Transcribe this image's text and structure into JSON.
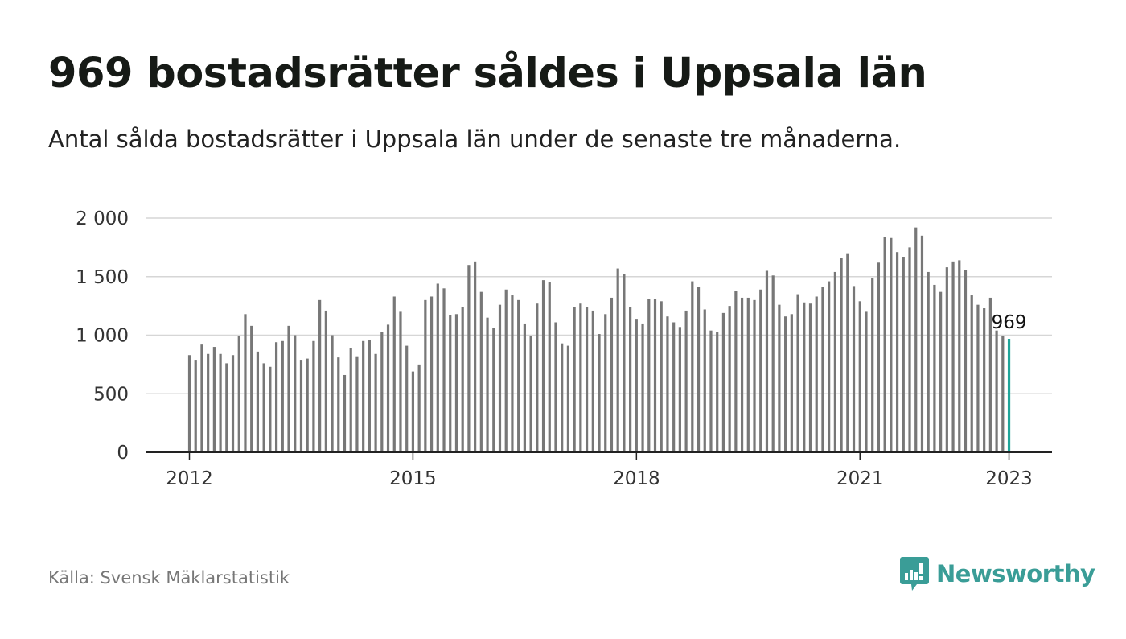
{
  "title": "969 bostadsrätter såldes i Uppsala län",
  "subtitle": "Antal sålda bostadsrätter i Uppsala län under de senaste tre månaderna.",
  "source": "Källa: Svensk Mäklarstatistik",
  "brand": {
    "name": "Newsworthy",
    "icon": "newsworthy-logo-icon",
    "color": "#3a9d97"
  },
  "chart_data": {
    "type": "bar",
    "x_start": "2012-01",
    "x_interval": "month",
    "ylim": [
      0,
      2000
    ],
    "grid": true,
    "y_ticks": [
      {
        "value": 0,
        "label": "0"
      },
      {
        "value": 500,
        "label": "500"
      },
      {
        "value": 1000,
        "label": "1 000"
      },
      {
        "value": 1500,
        "label": "1 500"
      },
      {
        "value": 2000,
        "label": "2 000"
      }
    ],
    "x_ticks": [
      {
        "index": 0,
        "label": "2012"
      },
      {
        "index": 36,
        "label": "2015"
      },
      {
        "index": 72,
        "label": "2018"
      },
      {
        "index": 108,
        "label": "2021"
      },
      {
        "index": 132,
        "label": "2023"
      }
    ],
    "bar_color": "#777777",
    "highlight_color": "#1fa59a",
    "highlight_index": 132,
    "highlight_label": "969",
    "values": [
      830,
      790,
      920,
      840,
      900,
      840,
      760,
      830,
      990,
      1180,
      1080,
      860,
      760,
      730,
      940,
      950,
      1080,
      1000,
      790,
      800,
      950,
      1300,
      1210,
      1000,
      810,
      660,
      890,
      820,
      950,
      960,
      840,
      1030,
      1090,
      1330,
      1200,
      910,
      690,
      750,
      1300,
      1330,
      1440,
      1400,
      1170,
      1180,
      1240,
      1600,
      1630,
      1370,
      1150,
      1060,
      1260,
      1390,
      1340,
      1300,
      1100,
      990,
      1270,
      1470,
      1450,
      1110,
      930,
      910,
      1240,
      1270,
      1240,
      1210,
      1010,
      1180,
      1320,
      1570,
      1520,
      1240,
      1140,
      1100,
      1310,
      1310,
      1290,
      1160,
      1110,
      1070,
      1210,
      1460,
      1410,
      1220,
      1040,
      1030,
      1190,
      1250,
      1380,
      1320,
      1320,
      1300,
      1390,
      1550,
      1510,
      1260,
      1160,
      1180,
      1350,
      1280,
      1270,
      1330,
      1410,
      1460,
      1540,
      1660,
      1700,
      1420,
      1290,
      1200,
      1490,
      1620,
      1840,
      1830,
      1710,
      1670,
      1750,
      1920,
      1850,
      1540,
      1430,
      1370,
      1580,
      1630,
      1640,
      1560,
      1340,
      1260,
      1230,
      1320,
      1040,
      990,
      969
    ]
  }
}
